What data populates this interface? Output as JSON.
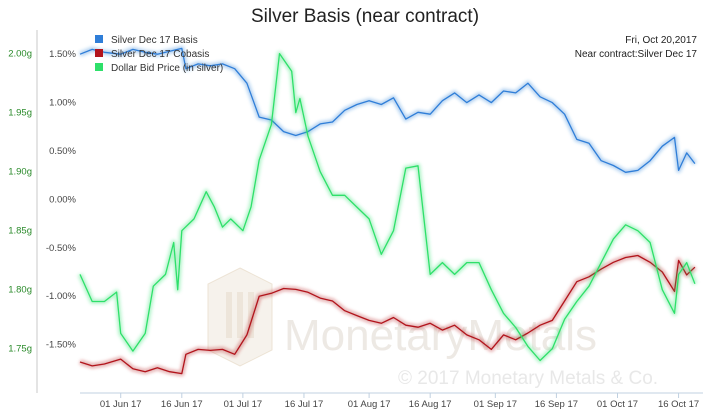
{
  "chart_data": {
    "type": "line",
    "title": "Silver Basis (near contract)",
    "annotation_lines": [
      "Fri, Oct 20,2017",
      "Near contract:Silver Dec 17"
    ],
    "watermark": {
      "brand": "MonetaryMetals",
      "copyright": "© 2017 Monetary Metals & Co."
    },
    "legend": {
      "placement": "top-left",
      "items": [
        {
          "name": "Silver Dec 17 Basis",
          "color": "#2f7ed8"
        },
        {
          "name": "Silver Dec 17 Cobasis",
          "color": "#b2141c"
        },
        {
          "name": "Dollar Bid Price (in silver)",
          "color": "#2ee06a"
        }
      ]
    },
    "x_axis": {
      "type": "date",
      "range": [
        "2017-05-22",
        "2017-10-22"
      ],
      "ticks": [
        {
          "label": "01 Jun 17",
          "date": "2017-06-01"
        },
        {
          "label": "16 Jun 17",
          "date": "2017-06-16"
        },
        {
          "label": "01 Jul 17",
          "date": "2017-07-01"
        },
        {
          "label": "16 Jul 17",
          "date": "2017-07-16"
        },
        {
          "label": "01 Aug 17",
          "date": "2017-08-01"
        },
        {
          "label": "16 Aug 17",
          "date": "2017-08-16"
        },
        {
          "label": "01 Sep 17",
          "date": "2017-09-01"
        },
        {
          "label": "16 Sep 17",
          "date": "2017-09-16"
        },
        {
          "label": "01 Oct 17",
          "date": "2017-10-01"
        },
        {
          "label": "16 Oct 17",
          "date": "2017-10-16"
        }
      ]
    },
    "y_axis_basis": {
      "unit": "%",
      "range": [
        -2.0,
        1.75
      ],
      "ticks": [
        {
          "label": "1.50%",
          "value": 1.5
        },
        {
          "label": "1.00%",
          "value": 1.0
        },
        {
          "label": "0.50%",
          "value": 0.5
        },
        {
          "label": "0.00%",
          "value": 0.0
        },
        {
          "label": "-0.50%",
          "value": -0.5
        },
        {
          "label": "-1.00%",
          "value": -1.0
        },
        {
          "label": "-1.50%",
          "value": -1.5
        }
      ]
    },
    "y_axis_price": {
      "unit": "g",
      "color": "#2a8a2a",
      "range": [
        1.7125,
        2.02
      ],
      "ticks": [
        {
          "label": "2.00g",
          "value": 2.0
        },
        {
          "label": "1.95g",
          "value": 1.95
        },
        {
          "label": "1.90g",
          "value": 1.9
        },
        {
          "label": "1.85g",
          "value": 1.85
        },
        {
          "label": "1.80g",
          "value": 1.8
        },
        {
          "label": "1.75g",
          "value": 1.75
        }
      ]
    },
    "series": [
      {
        "name": "Silver Dec 17 Basis",
        "axis": "basis",
        "color": "#2f7ed8",
        "points": [
          [
            "2017-05-22",
            1.5
          ],
          [
            "2017-05-25",
            1.55
          ],
          [
            "2017-05-28",
            1.52
          ],
          [
            "2017-06-01",
            1.5
          ],
          [
            "2017-06-04",
            1.55
          ],
          [
            "2017-06-07",
            1.52
          ],
          [
            "2017-06-10",
            1.5
          ],
          [
            "2017-06-13",
            1.53
          ],
          [
            "2017-06-16",
            1.56
          ],
          [
            "2017-06-17",
            1.35
          ],
          [
            "2017-06-20",
            1.4
          ],
          [
            "2017-06-23",
            1.38
          ],
          [
            "2017-06-26",
            1.4
          ],
          [
            "2017-06-29",
            1.35
          ],
          [
            "2017-07-02",
            1.2
          ],
          [
            "2017-07-05",
            0.85
          ],
          [
            "2017-07-08",
            0.82
          ],
          [
            "2017-07-11",
            0.7
          ],
          [
            "2017-07-14",
            0.66
          ],
          [
            "2017-07-17",
            0.7
          ],
          [
            "2017-07-20",
            0.78
          ],
          [
            "2017-07-23",
            0.8
          ],
          [
            "2017-07-26",
            0.92
          ],
          [
            "2017-07-29",
            0.98
          ],
          [
            "2017-08-01",
            1.02
          ],
          [
            "2017-08-04",
            0.98
          ],
          [
            "2017-08-07",
            1.05
          ],
          [
            "2017-08-10",
            0.83
          ],
          [
            "2017-08-13",
            0.9
          ],
          [
            "2017-08-16",
            0.88
          ],
          [
            "2017-08-19",
            1.02
          ],
          [
            "2017-08-22",
            1.1
          ],
          [
            "2017-08-25",
            1.0
          ],
          [
            "2017-08-28",
            1.08
          ],
          [
            "2017-08-31",
            1.0
          ],
          [
            "2017-09-03",
            1.12
          ],
          [
            "2017-09-06",
            1.1
          ],
          [
            "2017-09-09",
            1.2
          ],
          [
            "2017-09-12",
            1.06
          ],
          [
            "2017-09-15",
            1.0
          ],
          [
            "2017-09-18",
            0.88
          ],
          [
            "2017-09-21",
            0.62
          ],
          [
            "2017-09-24",
            0.58
          ],
          [
            "2017-09-27",
            0.4
          ],
          [
            "2017-09-30",
            0.35
          ],
          [
            "2017-10-03",
            0.28
          ],
          [
            "2017-10-06",
            0.3
          ],
          [
            "2017-10-09",
            0.4
          ],
          [
            "2017-10-12",
            0.55
          ],
          [
            "2017-10-15",
            0.64
          ],
          [
            "2017-10-16",
            0.3
          ],
          [
            "2017-10-18",
            0.48
          ],
          [
            "2017-10-20",
            0.37
          ]
        ]
      },
      {
        "name": "Silver Dec 17 Cobasis",
        "axis": "basis",
        "color": "#b2141c",
        "points": [
          [
            "2017-05-22",
            -1.68
          ],
          [
            "2017-05-25",
            -1.72
          ],
          [
            "2017-05-28",
            -1.7
          ],
          [
            "2017-06-01",
            -1.65
          ],
          [
            "2017-06-04",
            -1.75
          ],
          [
            "2017-06-07",
            -1.78
          ],
          [
            "2017-06-10",
            -1.74
          ],
          [
            "2017-06-13",
            -1.78
          ],
          [
            "2017-06-16",
            -1.8
          ],
          [
            "2017-06-17",
            -1.6
          ],
          [
            "2017-06-20",
            -1.55
          ],
          [
            "2017-06-23",
            -1.56
          ],
          [
            "2017-06-26",
            -1.55
          ],
          [
            "2017-06-29",
            -1.6
          ],
          [
            "2017-07-02",
            -1.4
          ],
          [
            "2017-07-05",
            -1.0
          ],
          [
            "2017-07-08",
            -0.97
          ],
          [
            "2017-07-11",
            -0.92
          ],
          [
            "2017-07-14",
            -0.93
          ],
          [
            "2017-07-17",
            -0.96
          ],
          [
            "2017-07-20",
            -1.02
          ],
          [
            "2017-07-23",
            -1.05
          ],
          [
            "2017-07-26",
            -1.15
          ],
          [
            "2017-07-29",
            -1.2
          ],
          [
            "2017-08-01",
            -1.25
          ],
          [
            "2017-08-04",
            -1.28
          ],
          [
            "2017-08-07",
            -1.22
          ],
          [
            "2017-08-10",
            -1.3
          ],
          [
            "2017-08-13",
            -1.32
          ],
          [
            "2017-08-16",
            -1.28
          ],
          [
            "2017-08-19",
            -1.35
          ],
          [
            "2017-08-22",
            -1.3
          ],
          [
            "2017-08-25",
            -1.4
          ],
          [
            "2017-08-28",
            -1.45
          ],
          [
            "2017-08-31",
            -1.55
          ],
          [
            "2017-09-03",
            -1.4
          ],
          [
            "2017-09-06",
            -1.45
          ],
          [
            "2017-09-09",
            -1.38
          ],
          [
            "2017-09-12",
            -1.3
          ],
          [
            "2017-09-15",
            -1.25
          ],
          [
            "2017-09-18",
            -1.05
          ],
          [
            "2017-09-21",
            -0.85
          ],
          [
            "2017-09-24",
            -0.8
          ],
          [
            "2017-09-27",
            -0.72
          ],
          [
            "2017-09-30",
            -0.65
          ],
          [
            "2017-10-03",
            -0.6
          ],
          [
            "2017-10-06",
            -0.58
          ],
          [
            "2017-10-09",
            -0.65
          ],
          [
            "2017-10-12",
            -0.75
          ],
          [
            "2017-10-15",
            -0.95
          ],
          [
            "2017-10-16",
            -0.63
          ],
          [
            "2017-10-18",
            -0.78
          ],
          [
            "2017-10-20",
            -0.7
          ]
        ]
      },
      {
        "name": "Dollar Bid Price (in silver)",
        "axis": "price",
        "color": "#2ee06a",
        "points": [
          [
            "2017-05-22",
            1.813
          ],
          [
            "2017-05-25",
            1.79
          ],
          [
            "2017-05-28",
            1.79
          ],
          [
            "2017-05-31",
            1.798
          ],
          [
            "2017-06-01",
            1.763
          ],
          [
            "2017-06-04",
            1.748
          ],
          [
            "2017-06-07",
            1.763
          ],
          [
            "2017-06-09",
            1.803
          ],
          [
            "2017-06-12",
            1.813
          ],
          [
            "2017-06-14",
            1.84
          ],
          [
            "2017-06-15",
            1.8
          ],
          [
            "2017-06-16",
            1.85
          ],
          [
            "2017-06-19",
            1.86
          ],
          [
            "2017-06-22",
            1.883
          ],
          [
            "2017-06-24",
            1.87
          ],
          [
            "2017-06-26",
            1.853
          ],
          [
            "2017-06-28",
            1.86
          ],
          [
            "2017-07-01",
            1.85
          ],
          [
            "2017-07-03",
            1.87
          ],
          [
            "2017-07-05",
            1.91
          ],
          [
            "2017-07-08",
            1.94
          ],
          [
            "2017-07-10",
            2.0
          ],
          [
            "2017-07-13",
            1.985
          ],
          [
            "2017-07-14",
            1.95
          ],
          [
            "2017-07-15",
            1.962
          ],
          [
            "2017-07-17",
            1.93
          ],
          [
            "2017-07-20",
            1.9
          ],
          [
            "2017-07-23",
            1.88
          ],
          [
            "2017-07-26",
            1.88
          ],
          [
            "2017-07-29",
            1.87
          ],
          [
            "2017-08-01",
            1.86
          ],
          [
            "2017-08-04",
            1.83
          ],
          [
            "2017-08-07",
            1.85
          ],
          [
            "2017-08-10",
            1.903
          ],
          [
            "2017-08-13",
            1.905
          ],
          [
            "2017-08-16",
            1.813
          ],
          [
            "2017-08-19",
            1.823
          ],
          [
            "2017-08-22",
            1.813
          ],
          [
            "2017-08-25",
            1.823
          ],
          [
            "2017-08-28",
            1.823
          ],
          [
            "2017-08-31",
            1.8
          ],
          [
            "2017-09-03",
            1.78
          ],
          [
            "2017-09-06",
            1.768
          ],
          [
            "2017-09-09",
            1.752
          ],
          [
            "2017-09-12",
            1.74
          ],
          [
            "2017-09-15",
            1.75
          ],
          [
            "2017-09-18",
            1.775
          ],
          [
            "2017-09-21",
            1.79
          ],
          [
            "2017-09-24",
            1.803
          ],
          [
            "2017-09-27",
            1.823
          ],
          [
            "2017-09-30",
            1.843
          ],
          [
            "2017-10-03",
            1.855
          ],
          [
            "2017-10-06",
            1.85
          ],
          [
            "2017-10-09",
            1.84
          ],
          [
            "2017-10-12",
            1.8
          ],
          [
            "2017-10-15",
            1.78
          ],
          [
            "2017-10-16",
            1.813
          ],
          [
            "2017-10-18",
            1.823
          ],
          [
            "2017-10-20",
            1.805
          ]
        ]
      }
    ]
  }
}
